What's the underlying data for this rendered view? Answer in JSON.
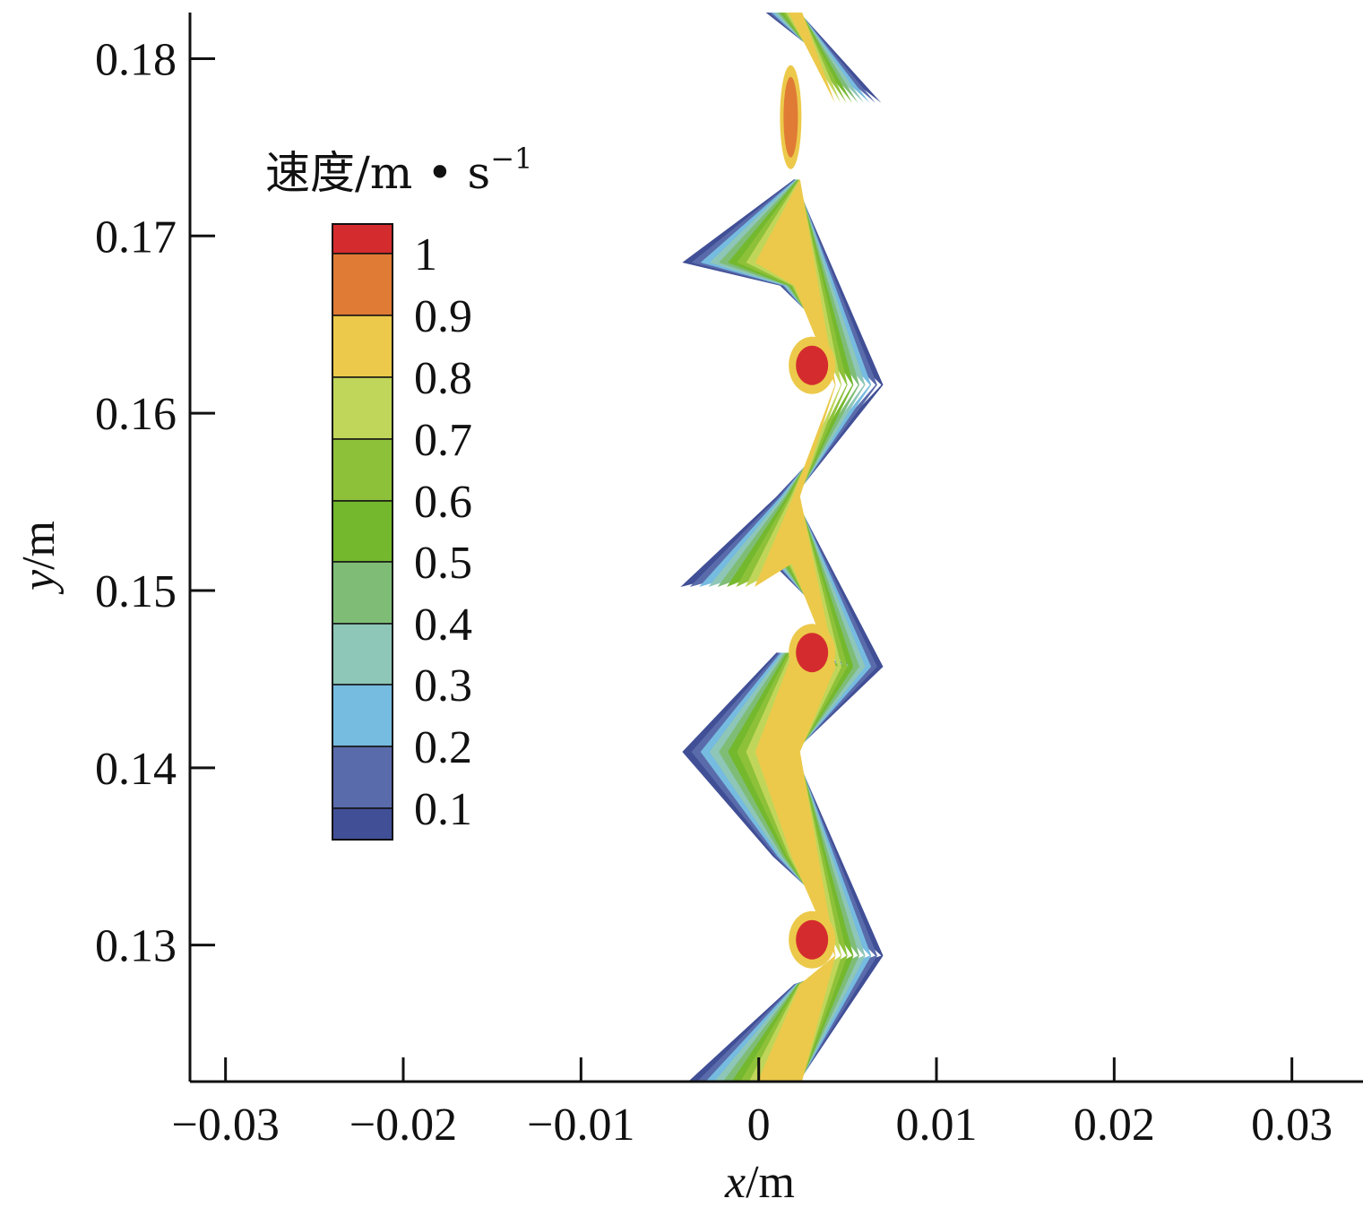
{
  "chart_data": {
    "type": "contour",
    "xlabel_var": "x",
    "xlabel_unit": "/m",
    "ylabel_var": "y",
    "ylabel_unit": "/m",
    "xlim": [
      -0.032,
      0.034
    ],
    "ylim": [
      0.1223,
      0.1826
    ],
    "xticks": [
      -0.03,
      -0.02,
      -0.01,
      0,
      0.01,
      0.02,
      0.03
    ],
    "xtick_labels": [
      "−0.03",
      "−0.02",
      "−0.01",
      "0",
      "0.01",
      "0.02",
      "0.03"
    ],
    "yticks": [
      0.13,
      0.14,
      0.15,
      0.16,
      0.17,
      0.18
    ],
    "ytick_labels": [
      "0.13",
      "0.14",
      "0.15",
      "0.16",
      "0.17",
      "0.18"
    ],
    "legend": {
      "title": "速度/m • s",
      "title_superscript": "−1",
      "placement": "upper-left",
      "levels": [
        1,
        0.9,
        0.8,
        0.7,
        0.6,
        0.5,
        0.4,
        0.3,
        0.2,
        0.1
      ],
      "level_labels": [
        "1",
        "0.9",
        "0.8",
        "0.7",
        "0.6",
        "0.5",
        "0.4",
        "0.3",
        "0.2",
        "0.1"
      ],
      "colors": [
        "#d42c2e",
        "#e07b35",
        "#ecc94a",
        "#c0d65a",
        "#8ec13a",
        "#74b82e",
        "#7fbd77",
        "#8ec6b8",
        "#76bbe0",
        "#5a6bab",
        "#414f96"
      ]
    },
    "channel": {
      "description_values": "zigzag channel; vertex coordinates in data units",
      "outline": [
        [
          -0.0044,
          0.1219
        ],
        [
          0.002,
          0.1278
        ],
        [
          0.0069,
          0.1294
        ],
        [
          0.0008,
          0.135
        ],
        [
          -0.0043,
          0.1409
        ],
        [
          0.001,
          0.1465
        ],
        [
          0.0066,
          0.1457
        ],
        [
          0.0008,
          0.1515
        ],
        [
          -0.0044,
          0.1502
        ],
        [
          0.001,
          0.1553
        ],
        [
          0.0069,
          0.1616
        ],
        [
          0.0012,
          0.1672
        ],
        [
          -0.0043,
          0.1685
        ],
        [
          0.002,
          0.1732
        ],
        [
          0.0069,
          0.1775
        ],
        [
          0.0004,
          0.1826
        ],
        [
          0.0023,
          0.1826
        ],
        [
          0.0069,
          0.1775
        ],
        [
          0.002,
          0.1732
        ],
        [
          0.007,
          0.1616
        ],
        [
          0.002,
          0.1553
        ],
        [
          0.007,
          0.1457
        ],
        [
          0.002,
          0.1409
        ],
        [
          0.007,
          0.1294
        ],
        [
          0.002,
          0.1219
        ]
      ],
      "peak_regions": [
        {
          "level": 1,
          "x": 0.003,
          "y": 0.1627
        },
        {
          "level": 1,
          "x": 0.003,
          "y": 0.1465
        },
        {
          "level": 1,
          "x": 0.003,
          "y": 0.1303
        },
        {
          "level": 0.9,
          "x": 0.0018,
          "y": 0.1767
        }
      ]
    }
  }
}
